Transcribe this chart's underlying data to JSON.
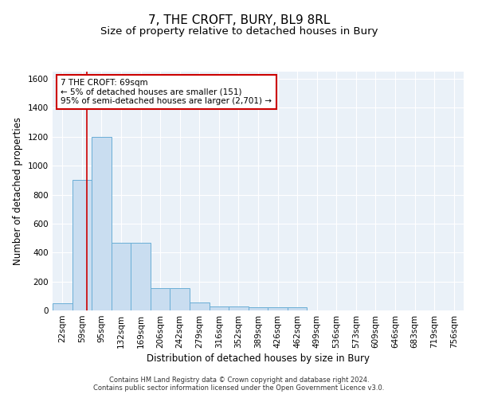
{
  "title": "7, THE CROFT, BURY, BL9 8RL",
  "subtitle": "Size of property relative to detached houses in Bury",
  "xlabel": "Distribution of detached houses by size in Bury",
  "ylabel": "Number of detached properties",
  "bar_color": "#c9ddf0",
  "bar_edge_color": "#6aaed6",
  "background_color": "#eaf1f8",
  "grid_color": "#ffffff",
  "categories": [
    "22sqm",
    "59sqm",
    "95sqm",
    "132sqm",
    "169sqm",
    "206sqm",
    "242sqm",
    "279sqm",
    "316sqm",
    "352sqm",
    "389sqm",
    "426sqm",
    "462sqm",
    "499sqm",
    "536sqm",
    "573sqm",
    "609sqm",
    "646sqm",
    "683sqm",
    "719sqm",
    "756sqm"
  ],
  "values": [
    50,
    900,
    1200,
    470,
    470,
    155,
    155,
    55,
    30,
    30,
    20,
    20,
    20,
    0,
    0,
    0,
    0,
    0,
    0,
    0,
    0
  ],
  "ylim": [
    0,
    1650
  ],
  "yticks": [
    0,
    200,
    400,
    600,
    800,
    1000,
    1200,
    1400,
    1600
  ],
  "red_line_x": 1.27,
  "annotation_line1": "7 THE CROFT: 69sqm",
  "annotation_line2": "← 5% of detached houses are smaller (151)",
  "annotation_line3": "95% of semi-detached houses are larger (2,701) →",
  "annotation_box_color": "#ffffff",
  "annotation_border_color": "#cc0000",
  "footer_text": "Contains HM Land Registry data © Crown copyright and database right 2024.\nContains public sector information licensed under the Open Government Licence v3.0.",
  "title_fontsize": 11,
  "subtitle_fontsize": 9.5,
  "label_fontsize": 8.5,
  "tick_fontsize": 7.5,
  "annot_fontsize": 7.5,
  "footer_fontsize": 6
}
